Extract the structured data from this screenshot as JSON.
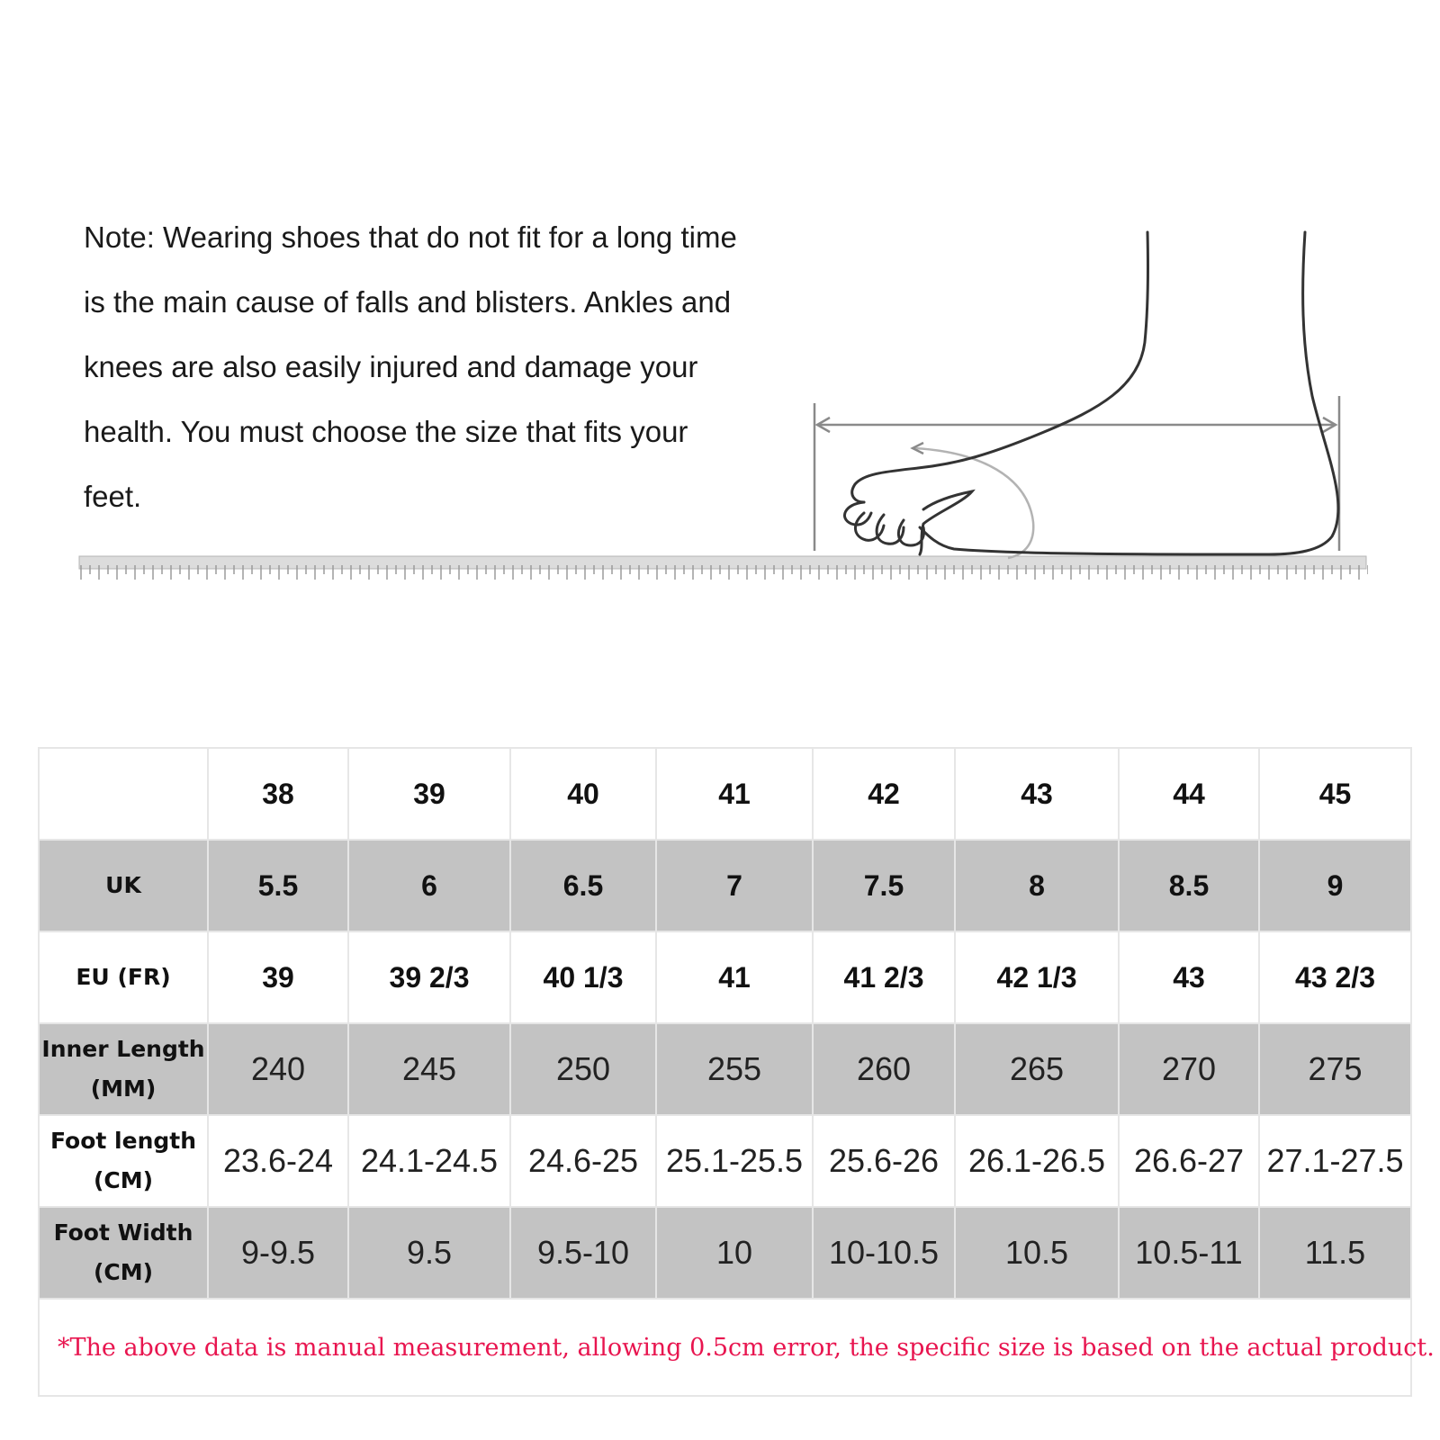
{
  "note": "Note: Wearing shoes that do not fit for a long time is the main cause of falls and blisters. Ankles and knees are also easily injured and damage your health. You must choose the size that fits your feet.",
  "table": {
    "sizes": [
      "38",
      "39",
      "40",
      "41",
      "42",
      "43",
      "44",
      "45"
    ],
    "rows": [
      {
        "label_line1": "UK",
        "label_line2": "",
        "values": [
          "5.5",
          "6",
          "6.5",
          "7",
          "7.5",
          "8",
          "8.5",
          "9"
        ]
      },
      {
        "label_line1": "EU (FR)",
        "label_line2": "",
        "values": [
          "39",
          "39 2/3",
          "40 1/3",
          "41",
          "41 2/3",
          "42 1/3",
          "43",
          "43 2/3"
        ]
      },
      {
        "label_line1": "Inner Length",
        "label_line2": "(MM)",
        "values": [
          "240",
          "245",
          "250",
          "255",
          "260",
          "265",
          "270",
          "275"
        ]
      },
      {
        "label_line1": "Foot length",
        "label_line2": "(CM)",
        "values": [
          "23.6-24",
          "24.1-24.5",
          "24.6-25",
          "25.1-25.5",
          "25.6-26",
          "26.1-26.5",
          "26.6-27",
          "27.1-27.5"
        ]
      },
      {
        "label_line1": "Foot Width",
        "label_line2": "(CM)",
        "values": [
          "9-9.5",
          "9.5",
          "9.5-10",
          "10",
          "10-10.5",
          "10.5",
          "10.5-11",
          "11.5"
        ]
      }
    ],
    "footnote": "*The above data is manual measurement, allowing 0.5cm error, the specific size is based on the actual product."
  },
  "colors": {
    "gray_row": "#c3c3c3",
    "footnote": "#e8154f"
  }
}
